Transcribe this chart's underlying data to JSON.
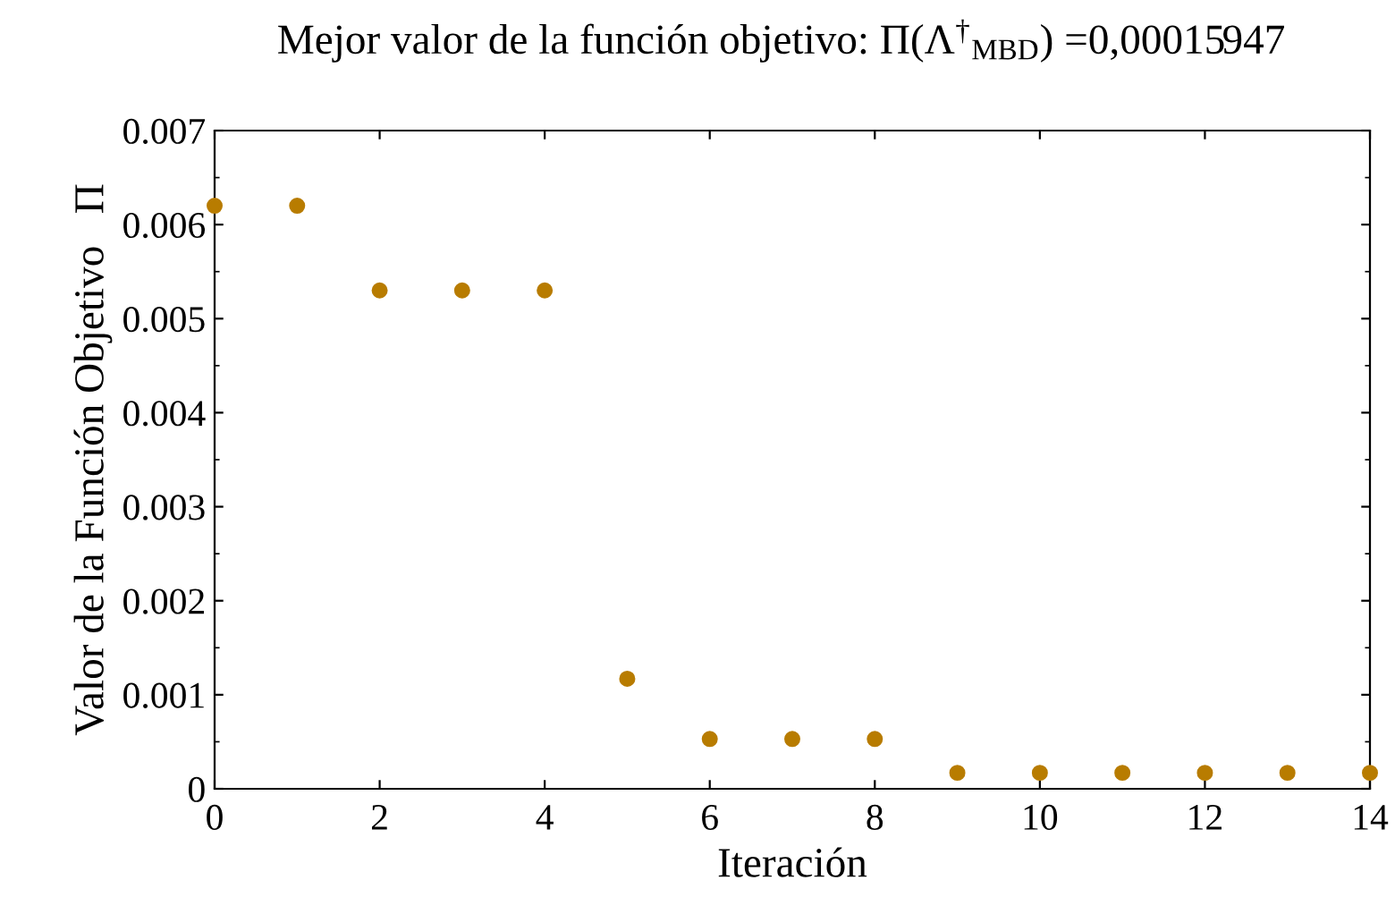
{
  "chart_data": {
    "type": "scatter",
    "title": "Mejor valor de la función objetivo: Π(Λ$^{†}$$_{MBD}$) =0,00015947",
    "xlabel": "Iteración",
    "ylabel": "Valor de la Función Objetivo   Π",
    "x": [
      0,
      1,
      2,
      3,
      4,
      5,
      6,
      7,
      8,
      9,
      10,
      11,
      12,
      13,
      14
    ],
    "series": [
      {
        "color": "#b87c00",
        "values": [
          0.0062,
          0.0062,
          0.0053,
          0.0053,
          0.0053,
          0.00117,
          0.00053,
          0.00053,
          0.00053,
          0.00017,
          0.00017,
          0.00017,
          0.00017,
          0.00017,
          0.00017
        ]
      }
    ],
    "xlim": [
      0,
      14
    ],
    "xticks": [
      0,
      2,
      4,
      6,
      8,
      10,
      12,
      14
    ],
    "ylim": [
      0,
      0.007
    ],
    "yticks": [
      0,
      0.001,
      0.002,
      0.003,
      0.004,
      0.005,
      0.006,
      0.007
    ],
    "marker": "circle"
  }
}
